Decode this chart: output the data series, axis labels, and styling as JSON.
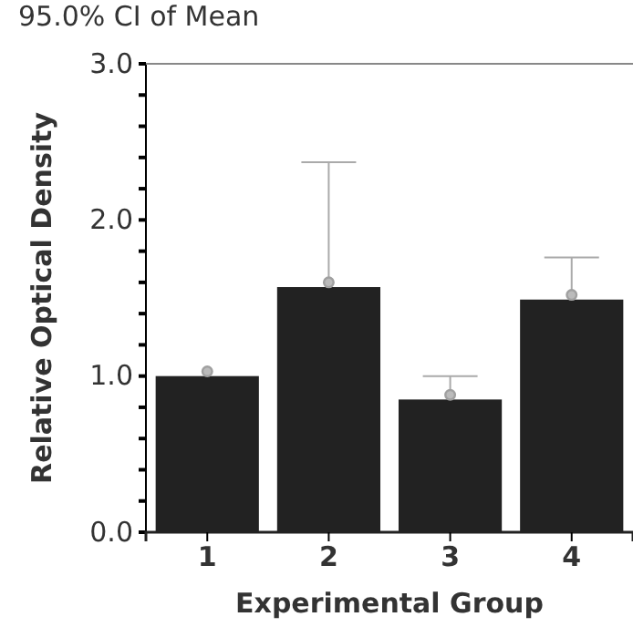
{
  "chart_data": {
    "type": "bar",
    "title": "95.0% CI of Mean",
    "xlabel": "Experimental Group",
    "ylabel": "Relative Optical Density",
    "categories": [
      "1",
      "2",
      "3",
      "4"
    ],
    "series": [
      {
        "color": "#222222",
        "values": [
          1.0,
          1.57,
          0.85,
          1.49
        ]
      },
      {
        "type": "scatter",
        "color": "#a0a0a0",
        "x": [
          "1",
          "2",
          "3",
          "4"
        ],
        "values": [
          1.03,
          1.6,
          0.88,
          1.52
        ],
        "errors": [
          null,
          [
            1.6,
            2.37
          ],
          [
            0.88,
            1.0
          ],
          [
            1.52,
            1.76
          ]
        ]
      }
    ],
    "ylim": [
      0,
      3
    ],
    "yticks": [
      {
        "value": 0,
        "label": "0.0"
      },
      {
        "value": 0.2,
        "label": null
      },
      {
        "value": 0.4,
        "label": null
      },
      {
        "value": 0.6,
        "label": null
      },
      {
        "value": 0.8,
        "label": null
      },
      {
        "value": 1,
        "label": "1.0"
      },
      {
        "value": 1.2,
        "label": null
      },
      {
        "value": 1.4,
        "label": null
      },
      {
        "value": 1.6,
        "label": null
      },
      {
        "value": 1.8,
        "label": null
      },
      {
        "value": 2,
        "label": "2.0"
      },
      {
        "value": 2.2,
        "label": null
      },
      {
        "value": 2.4,
        "label": null
      },
      {
        "value": 2.6,
        "label": null
      },
      {
        "value": 2.8,
        "label": null
      },
      {
        "value": 3,
        "label": "3.0"
      }
    ],
    "grid": false,
    "marker": "circle"
  }
}
